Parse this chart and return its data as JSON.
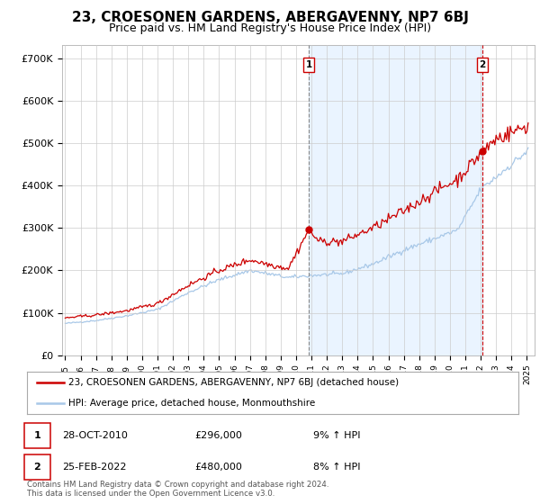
{
  "title": "23, CROESONEN GARDENS, ABERGAVENNY, NP7 6BJ",
  "subtitle": "Price paid vs. HM Land Registry's House Price Index (HPI)",
  "title_fontsize": 11,
  "subtitle_fontsize": 9,
  "ylabel_ticks": [
    "£0",
    "£100K",
    "£200K",
    "£300K",
    "£400K",
    "£500K",
    "£600K",
    "£700K"
  ],
  "ytick_values": [
    0,
    100000,
    200000,
    300000,
    400000,
    500000,
    600000,
    700000
  ],
  "ylim": [
    0,
    730000
  ],
  "xlim_start": 1994.8,
  "xlim_end": 2025.5,
  "hpi_color": "#a8c8e8",
  "price_color": "#cc0000",
  "shade_color": "#ddeeff",
  "bg_color": "#ffffff",
  "grid_color": "#cccccc",
  "sale1_year": 2010.83,
  "sale1_price": 296000,
  "sale2_year": 2022.12,
  "sale2_price": 480000,
  "legend_line1": "23, CROESONEN GARDENS, ABERGAVENNY, NP7 6BJ (detached house)",
  "legend_line2": "HPI: Average price, detached house, Monmouthshire",
  "table_row1_num": "1",
  "table_row1_date": "28-OCT-2010",
  "table_row1_price": "£296,000",
  "table_row1_hpi": "9% ↑ HPI",
  "table_row2_num": "2",
  "table_row2_date": "25-FEB-2022",
  "table_row2_price": "£480,000",
  "table_row2_hpi": "8% ↑ HPI",
  "footer": "Contains HM Land Registry data © Crown copyright and database right 2024.\nThis data is licensed under the Open Government Licence v3.0."
}
